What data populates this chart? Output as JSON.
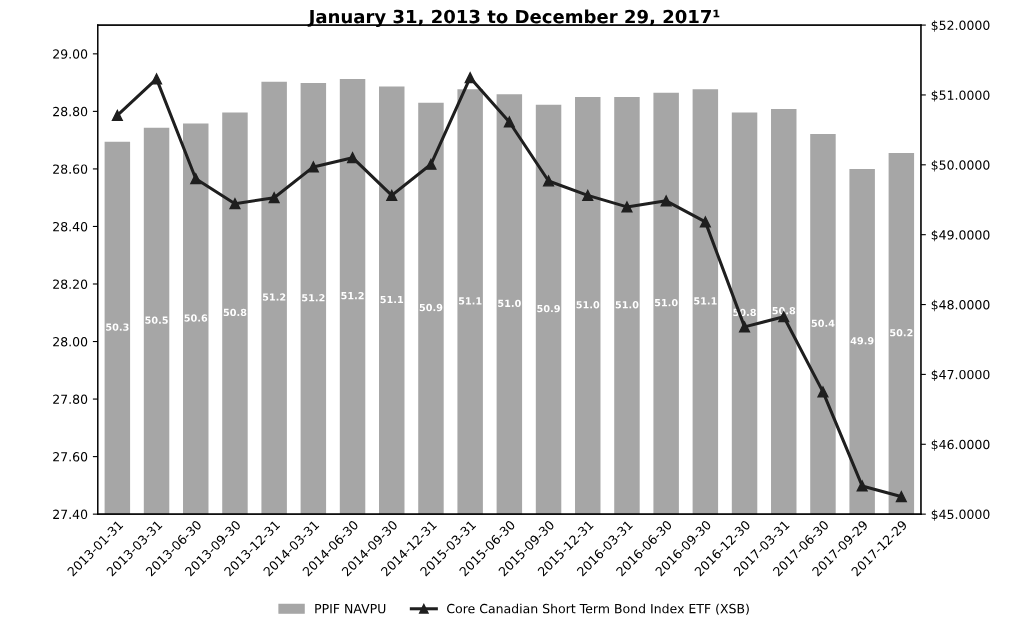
{
  "chart_data": {
    "type": "bar",
    "title": "January 31, 2013 to December 29, 2017¹",
    "categories": [
      "2013-01-31",
      "2013-03-31",
      "2013-06-30",
      "2013-09-30",
      "2013-12-31",
      "2014-03-31",
      "2014-06-30",
      "2014-09-30",
      "2014-12-31",
      "2015-03-31",
      "2015-06-30",
      "2015-09-30",
      "2015-12-31",
      "2016-03-31",
      "2016-06-30",
      "2016-09-30",
      "2016-12-30",
      "2017-03-31",
      "2017-06-30",
      "2017-09-29",
      "2017-12-29"
    ],
    "series": [
      {
        "name": "PPIF NAVPU",
        "axis": "y2",
        "color": "#a6a6a6",
        "values": [
          50.33,
          50.53,
          50.59,
          50.75,
          51.19,
          51.17,
          51.23,
          51.12,
          50.89,
          51.08,
          51.01,
          50.86,
          50.97,
          50.97,
          51.03,
          51.08,
          50.75,
          50.8,
          50.44,
          49.94,
          50.17
        ],
        "value_labels": [
          "50.3",
          "50.5",
          "50.6",
          "50.8",
          "51.2",
          "51.2",
          "51.2",
          "51.1",
          "50.9",
          "51.1",
          "51.0",
          "50.9",
          "51.0",
          "51.0",
          "51.0",
          "51.1",
          "50.8",
          "50.8",
          "50.4",
          "49.9",
          "50.2"
        ]
      },
      {
        "name": "Core Canadian Short Term Bond Index ETF (XSB)",
        "type": "line",
        "color": "#1f1f1f",
        "marker": "triangle",
        "values": [
          28.786,
          28.913,
          28.566,
          28.479,
          28.5,
          28.607,
          28.639,
          28.508,
          28.616,
          28.917,
          28.763,
          28.558,
          28.508,
          28.468,
          28.489,
          28.416,
          28.051,
          28.086,
          27.825,
          27.498,
          27.461
        ]
      }
    ],
    "ylim": [
      27.4,
      29.1
    ],
    "yticks": [
      {
        "value": 27.4,
        "label": "27.40"
      },
      {
        "value": 27.6,
        "label": "27.60"
      },
      {
        "value": 27.8,
        "label": "27.80"
      },
      {
        "value": 28.0,
        "label": "28.00"
      },
      {
        "value": 28.2,
        "label": "28.20"
      },
      {
        "value": 28.4,
        "label": "28.40"
      },
      {
        "value": 28.6,
        "label": "28.60"
      },
      {
        "value": 28.8,
        "label": "28.80"
      },
      {
        "value": 29.0,
        "label": "29.00"
      }
    ],
    "y2lim": [
      45,
      52
    ],
    "y2ticks": [
      {
        "value": 45,
        "label": "$45.0000"
      },
      {
        "value": 46,
        "label": "$46.0000"
      },
      {
        "value": 47,
        "label": "$47.0000"
      },
      {
        "value": 48,
        "label": "$48.0000"
      },
      {
        "value": 49,
        "label": "$49.0000"
      },
      {
        "value": 50,
        "label": "$50.0000"
      },
      {
        "value": 51,
        "label": "$51.0000"
      },
      {
        "value": 52,
        "label": "$52.0000"
      }
    ],
    "grid": false,
    "legend": "bottom"
  }
}
